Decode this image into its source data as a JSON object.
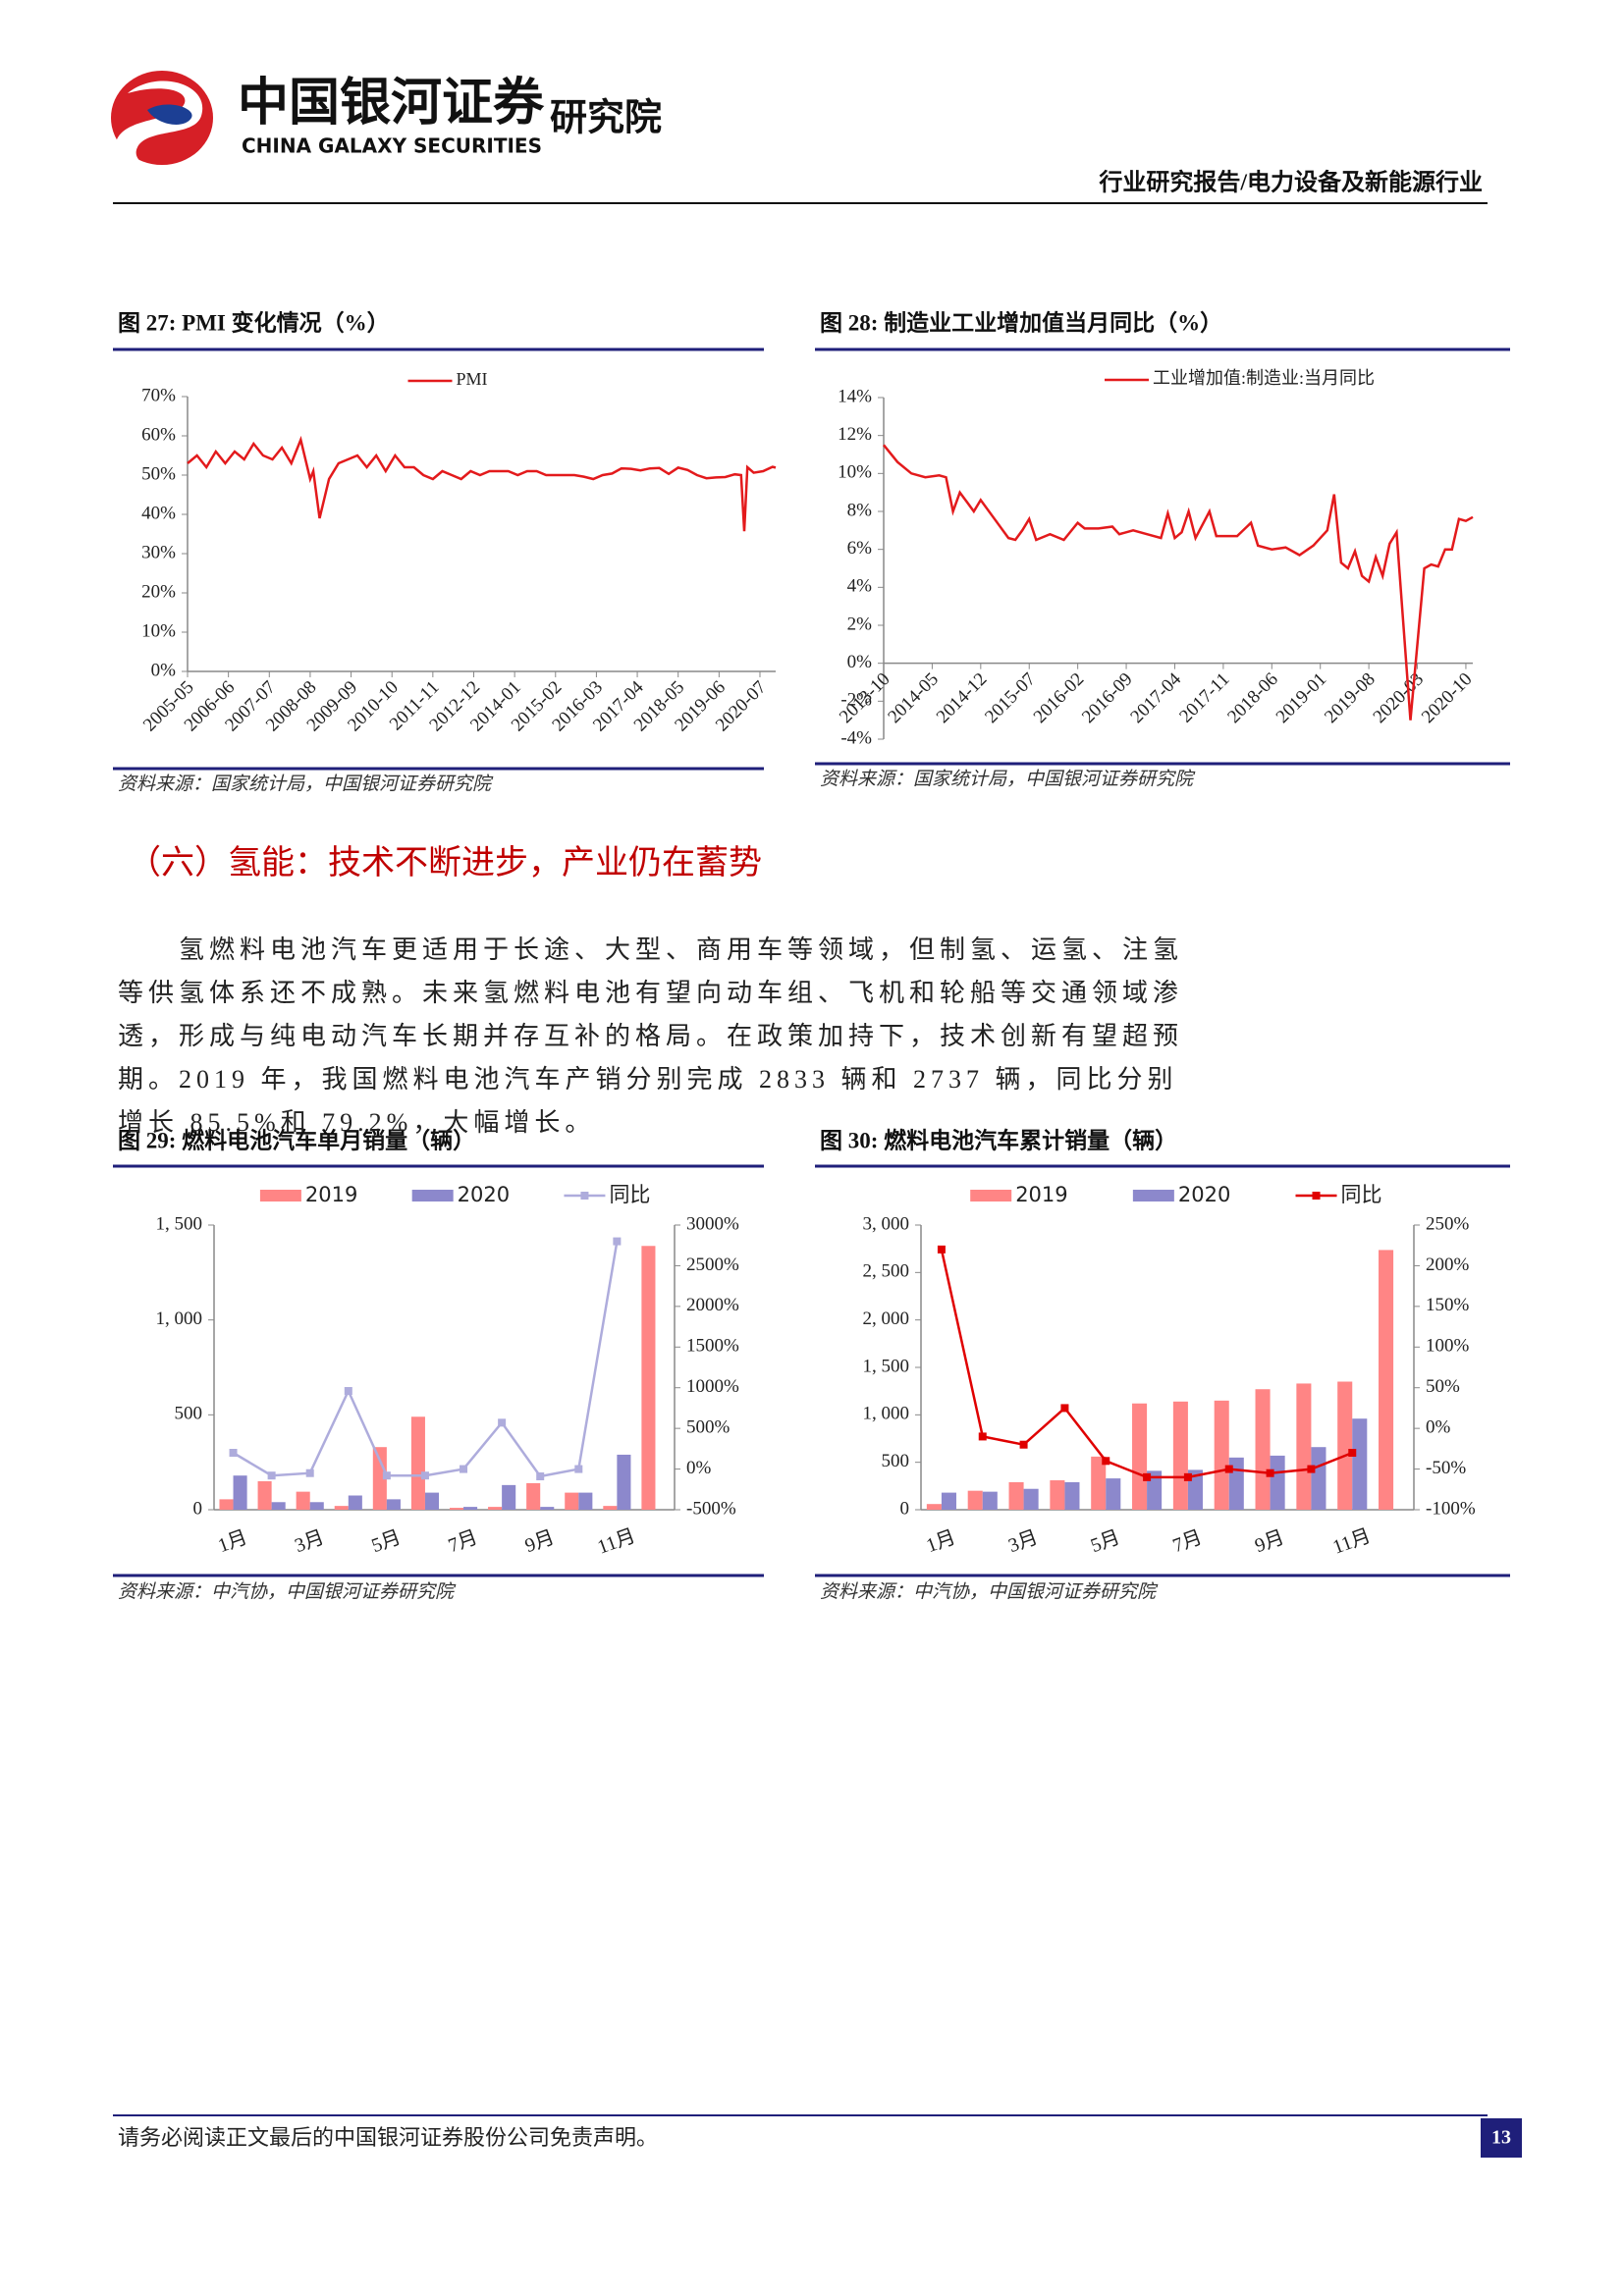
{
  "header": {
    "company": "中国银河证券",
    "company_en": "CHINA GALAXY SECURITIES",
    "institute": "研究院",
    "report_type": "行业研究报告/电力设备及新能源行业"
  },
  "section": {
    "heading": "（六）氢能：技术不断进步，产业仍在蓄势",
    "paragraph": "氢燃料电池汽车更适用于长途、大型、商用车等领域，但制氢、运氢、注氢等供氢体系还不成熟。未来氢燃料电池有望向动车组、飞机和轮船等交通领域渗透，形成与纯电动汽车长期并存互补的格局。在政策加持下，技术创新有望超预期。2019 年，我国燃料电池汽车产销分别完成 2833 辆和 2737 辆，同比分别增长 85.5%和 79.2%，大幅增长。"
  },
  "footer": {
    "note": "请务必阅读正文最后的中国银河证券股份公司免责声明。",
    "page": "13"
  },
  "chart_data": [
    {
      "type": "line",
      "title": "图 27: PMI 变化情况（%）",
      "source": "资料来源：国家统计局，中国银河证券研究院",
      "x": [
        "2005-05",
        "2005-08",
        "2005-11",
        "2006-02",
        "2006-05",
        "2006-08",
        "2006-11",
        "2007-02",
        "2007-05",
        "2007-08",
        "2007-11",
        "2008-02",
        "2008-05",
        "2008-08",
        "2008-09",
        "2008-11",
        "2009-02",
        "2009-05",
        "2009-08",
        "2009-11",
        "2010-02",
        "2010-05",
        "2010-08",
        "2010-11",
        "2011-02",
        "2011-05",
        "2011-08",
        "2011-11",
        "2012-02",
        "2012-05",
        "2012-08",
        "2012-11",
        "2013-02",
        "2013-05",
        "2013-08",
        "2013-11",
        "2014-02",
        "2014-05",
        "2014-08",
        "2014-11",
        "2015-02",
        "2015-05",
        "2015-08",
        "2015-11",
        "2016-02",
        "2016-05",
        "2016-08",
        "2016-11",
        "2017-02",
        "2017-05",
        "2017-08",
        "2017-11",
        "2018-02",
        "2018-05",
        "2018-08",
        "2018-11",
        "2019-02",
        "2019-05",
        "2019-08",
        "2019-11",
        "2020-01",
        "2020-02",
        "2020-03",
        "2020-05",
        "2020-08",
        "2020-11",
        "2020-12"
      ],
      "series": [
        {
          "name": "PMI",
          "color": "#e31a1c",
          "values": [
            53,
            55,
            52,
            56,
            53,
            56,
            54,
            58,
            55,
            54,
            57,
            53,
            59,
            49,
            51,
            39,
            49,
            53,
            54,
            55,
            52,
            55,
            51,
            55,
            52,
            52,
            50,
            49,
            51,
            50,
            49,
            51,
            50,
            51,
            51,
            51,
            50,
            51,
            51,
            50,
            50,
            50,
            50,
            49.6,
            49,
            50,
            50.4,
            51.7,
            51.6,
            51.2,
            51.7,
            51.8,
            50.3,
            51.9,
            51.3,
            50,
            49.2,
            49.4,
            49.5,
            50.2,
            50,
            35.7,
            52,
            50.6,
            51,
            52.1,
            51.9
          ]
        }
      ],
      "xlim": [
        "2005-05",
        "2020-12"
      ],
      "xticks": [
        "2005-05",
        "2006-06",
        "2007-07",
        "2008-08",
        "2009-09",
        "2010-10",
        "2011-11",
        "2012-12",
        "2014-01",
        "2015-02",
        "2016-03",
        "2017-04",
        "2018-05",
        "2019-06",
        "2020-07"
      ],
      "ylim": [
        0,
        70
      ],
      "yticks": [
        {
          "value": 0,
          "label": "0%"
        },
        {
          "value": 10,
          "label": "10%"
        },
        {
          "value": 20,
          "label": "20%"
        },
        {
          "value": 30,
          "label": "30%"
        },
        {
          "value": 40,
          "label": "40%"
        },
        {
          "value": 50,
          "label": "50%"
        },
        {
          "value": 60,
          "label": "60%"
        },
        {
          "value": 70,
          "label": "70%"
        }
      ],
      "legend": "top"
    },
    {
      "type": "line",
      "title": "图 28: 制造业工业增加值当月同比（%）",
      "source": "资料来源：国家统计局，中国银河证券研究院",
      "x": [
        "2013-10",
        "2013-12",
        "2014-02",
        "2014-04",
        "2014-06",
        "2014-07",
        "2014-08",
        "2014-09",
        "2014-10",
        "2014-11",
        "2014-12",
        "2015-02",
        "2015-04",
        "2015-05",
        "2015-06",
        "2015-07",
        "2015-08",
        "2015-10",
        "2015-12",
        "2016-02",
        "2016-03",
        "2016-05",
        "2016-07",
        "2016-08",
        "2016-10",
        "2016-12",
        "2017-02",
        "2017-03",
        "2017-04",
        "2017-05",
        "2017-06",
        "2017-07",
        "2017-09",
        "2017-10",
        "2018-01",
        "2018-03",
        "2018-04",
        "2018-06",
        "2018-08",
        "2018-10",
        "2018-12",
        "2019-02",
        "2019-03",
        "2019-04",
        "2019-05",
        "2019-06",
        "2019-07",
        "2019-08",
        "2019-09",
        "2019-10",
        "2019-11",
        "2019-12",
        "2020-02",
        "2020-04",
        "2020-05",
        "2020-06",
        "2020-07",
        "2020-08",
        "2020-09",
        "2020-10",
        "2020-11"
      ],
      "series": [
        {
          "name": "工业增加值:制造业:当月同比",
          "color": "#e31a1c",
          "values": [
            11.5,
            10.6,
            10,
            9.8,
            9.9,
            9.8,
            8,
            9,
            8.5,
            8,
            8.6,
            7.6,
            6.6,
            6.5,
            7,
            7.6,
            6.5,
            6.8,
            6.5,
            7.4,
            7.1,
            7.1,
            7.2,
            6.8,
            7,
            6.8,
            6.6,
            7.9,
            6.6,
            6.9,
            8,
            6.6,
            8,
            6.7,
            6.7,
            7.4,
            6.2,
            6,
            6.1,
            5.7,
            6.2,
            7,
            8.9,
            5.3,
            5,
            5.9,
            4.6,
            4.3,
            5.6,
            4.6,
            6.3,
            6.9,
            -3,
            5,
            5.2,
            5.1,
            6,
            6,
            7.6,
            7.5,
            7.7
          ]
        }
      ],
      "xlim": [
        "2013-10",
        "2020-11"
      ],
      "xticks": [
        "2013-10",
        "2014-05",
        "2014-12",
        "2015-07",
        "2016-02",
        "2016-09",
        "2017-04",
        "2017-11",
        "2018-06",
        "2019-01",
        "2019-08",
        "2020-03",
        "2020-10"
      ],
      "ylim": [
        -4,
        14
      ],
      "yticks": [
        {
          "value": -4,
          "label": "-4%"
        },
        {
          "value": -2,
          "label": "-2%"
        },
        {
          "value": 0,
          "label": "0%"
        },
        {
          "value": 2,
          "label": "2%"
        },
        {
          "value": 4,
          "label": "4%"
        },
        {
          "value": 6,
          "label": "6%"
        },
        {
          "value": 8,
          "label": "8%"
        },
        {
          "value": 10,
          "label": "10%"
        },
        {
          "value": 12,
          "label": "12%"
        },
        {
          "value": 14,
          "label": "14%"
        }
      ],
      "legend": "top"
    },
    {
      "type": "bar",
      "title": "图 29: 燃料电池汽车单月销量（辆）",
      "source": "资料来源：中汽协，中国银河证券研究院",
      "categories": [
        "1月",
        null,
        "3月",
        null,
        "5月",
        null,
        "7月",
        null,
        "9月",
        null,
        "11月",
        null
      ],
      "series": [
        {
          "name": "2019",
          "color": "#ff8585",
          "values": [
            55,
            150,
            95,
            20,
            330,
            490,
            10,
            15,
            140,
            90,
            20,
            1390
          ]
        },
        {
          "name": "2020",
          "color": "#8c88cc",
          "values": [
            180,
            40,
            40,
            75,
            55,
            90,
            15,
            130,
            15,
            90,
            290,
            null
          ]
        },
        {
          "name": "同比",
          "type": "line",
          "axis": "y2",
          "color": "#aeacdc",
          "values": [
            200,
            -80,
            -50,
            960,
            -80,
            -80,
            0,
            570,
            -90,
            0,
            2800,
            null
          ]
        }
      ],
      "ylim": [
        0,
        1500
      ],
      "yticks": [
        0,
        500,
        {
          "value": 1000,
          "label": "1, 000"
        },
        {
          "value": 1500,
          "label": "1, 500"
        }
      ],
      "y2lim": [
        -500,
        3000
      ],
      "y2ticks": [
        {
          "value": -500,
          "label": "-500%"
        },
        {
          "value": 0,
          "label": "0%"
        },
        {
          "value": 500,
          "label": "500%"
        },
        {
          "value": 1000,
          "label": "1000%"
        },
        {
          "value": 1500,
          "label": "1500%"
        },
        {
          "value": 2000,
          "label": "2000%"
        },
        {
          "value": 2500,
          "label": "2500%"
        },
        {
          "value": 3000,
          "label": "3000%"
        }
      ],
      "legend": "top"
    },
    {
      "type": "bar",
      "title": "图 30: 燃料电池汽车累计销量（辆）",
      "source": "资料来源：中汽协，中国银河证券研究院",
      "categories": [
        "1月",
        null,
        "3月",
        null,
        "5月",
        null,
        "7月",
        null,
        "9月",
        null,
        "11月",
        null
      ],
      "series": [
        {
          "name": "2019",
          "color": "#ff8585",
          "values": [
            60,
            200,
            290,
            310,
            560,
            1120,
            1140,
            1150,
            1270,
            1330,
            1350,
            2737
          ]
        },
        {
          "name": "2020",
          "color": "#8c88cc",
          "values": [
            180,
            190,
            220,
            290,
            330,
            410,
            420,
            550,
            570,
            660,
            960,
            null
          ]
        },
        {
          "name": "同比",
          "type": "line",
          "axis": "y2",
          "color": "#e00000",
          "values": [
            220,
            -10,
            -20,
            25,
            -40,
            -60,
            -60,
            -50,
            -55,
            -50,
            -30,
            null
          ]
        }
      ],
      "ylim": [
        0,
        3000
      ],
      "yticks": [
        0,
        500,
        {
          "value": 1000,
          "label": "1, 000"
        },
        {
          "value": 1500,
          "label": "1, 500"
        },
        {
          "value": 2000,
          "label": "2, 000"
        },
        {
          "value": 2500,
          "label": "2, 500"
        },
        {
          "value": 3000,
          "label": "3, 000"
        }
      ],
      "y2lim": [
        -100,
        250
      ],
      "y2ticks": [
        {
          "value": -100,
          "label": "-100%"
        },
        {
          "value": -50,
          "label": "-50%"
        },
        {
          "value": 0,
          "label": "0%"
        },
        {
          "value": 50,
          "label": "50%"
        },
        {
          "value": 100,
          "label": "100%"
        },
        {
          "value": 150,
          "label": "150%"
        },
        {
          "value": 200,
          "label": "200%"
        },
        {
          "value": 250,
          "label": "250%"
        }
      ],
      "legend": "top"
    }
  ]
}
